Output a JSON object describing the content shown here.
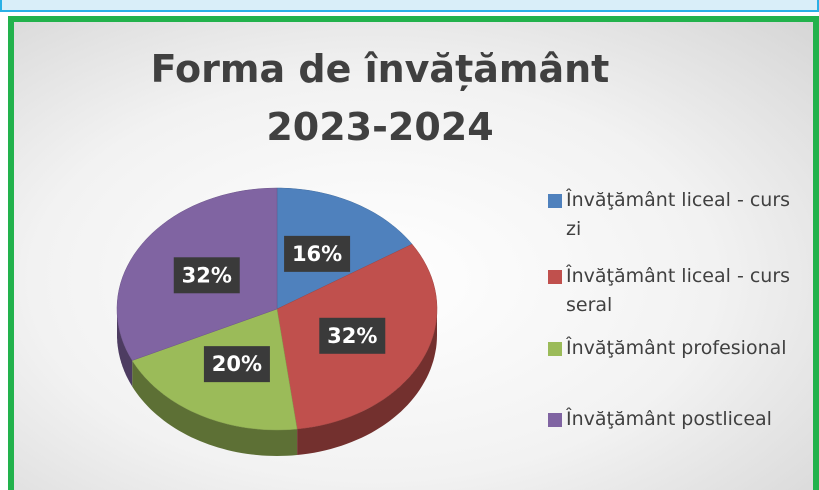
{
  "chart_data": {
    "type": "pie",
    "title": "Forma de învățământ\n2023-2024",
    "categories": [
      "Învăţământ liceal - curs zi",
      "Învăţământ liceal - curs seral",
      "Învăţământ profesional",
      "Învăţământ postliceal"
    ],
    "values": [
      16,
      32,
      20,
      32
    ],
    "value_labels": [
      "16%",
      "32%",
      "20%",
      "32%"
    ],
    "colors": [
      "#4f81bd",
      "#c0504d",
      "#9bbb59",
      "#8064a2"
    ],
    "legend": "right"
  }
}
